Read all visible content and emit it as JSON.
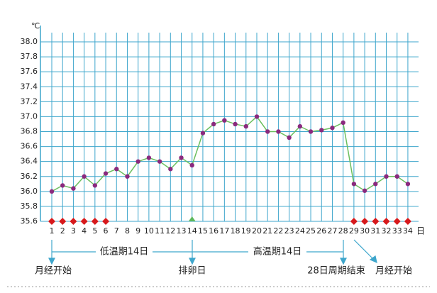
{
  "chart_data": {
    "type": "line",
    "y_unit": "℃",
    "x_unit": "日",
    "categories": [
      "1",
      "2",
      "3",
      "4",
      "5",
      "6",
      "7",
      "8",
      "9",
      "10",
      "11",
      "12",
      "13",
      "14",
      "15",
      "16",
      "17",
      "18",
      "19",
      "20",
      "21",
      "22",
      "23",
      "24",
      "25",
      "26",
      "27",
      "28",
      "29",
      "30",
      "31",
      "32",
      "33",
      "34"
    ],
    "series": [
      {
        "color": "#6abf5e",
        "values": [
          36.0,
          36.08,
          36.04,
          36.2,
          36.08,
          36.24,
          36.3,
          36.2,
          36.4,
          36.45,
          36.4,
          36.3,
          36.45,
          36.35,
          36.78,
          36.9,
          36.95,
          36.9,
          36.87,
          37.0,
          36.8,
          36.8,
          36.72,
          36.87,
          36.8,
          36.82,
          36.85,
          36.92,
          36.1,
          36.01,
          36.1,
          36.2,
          36.2,
          36.1
        ]
      }
    ],
    "marker_color": "#8a2a7e",
    "ylim": [
      35.6,
      38.0
    ],
    "yticks": [
      35.6,
      35.8,
      {
        "value": 36,
        "label": "36.0"
      },
      36.2,
      36.4,
      36.6,
      36.8,
      {
        "value": 37,
        "label": "37.0"
      },
      37.2,
      37.4,
      37.6,
      37.8,
      {
        "value": 38,
        "label": "38.0"
      }
    ],
    "grid": true,
    "grid_color": "#3ea6cc",
    "annotations": [
      "低温期14日",
      "高温期14日",
      "月经开始",
      "排卵日",
      "28日周期结束",
      "月经开始"
    ]
  }
}
